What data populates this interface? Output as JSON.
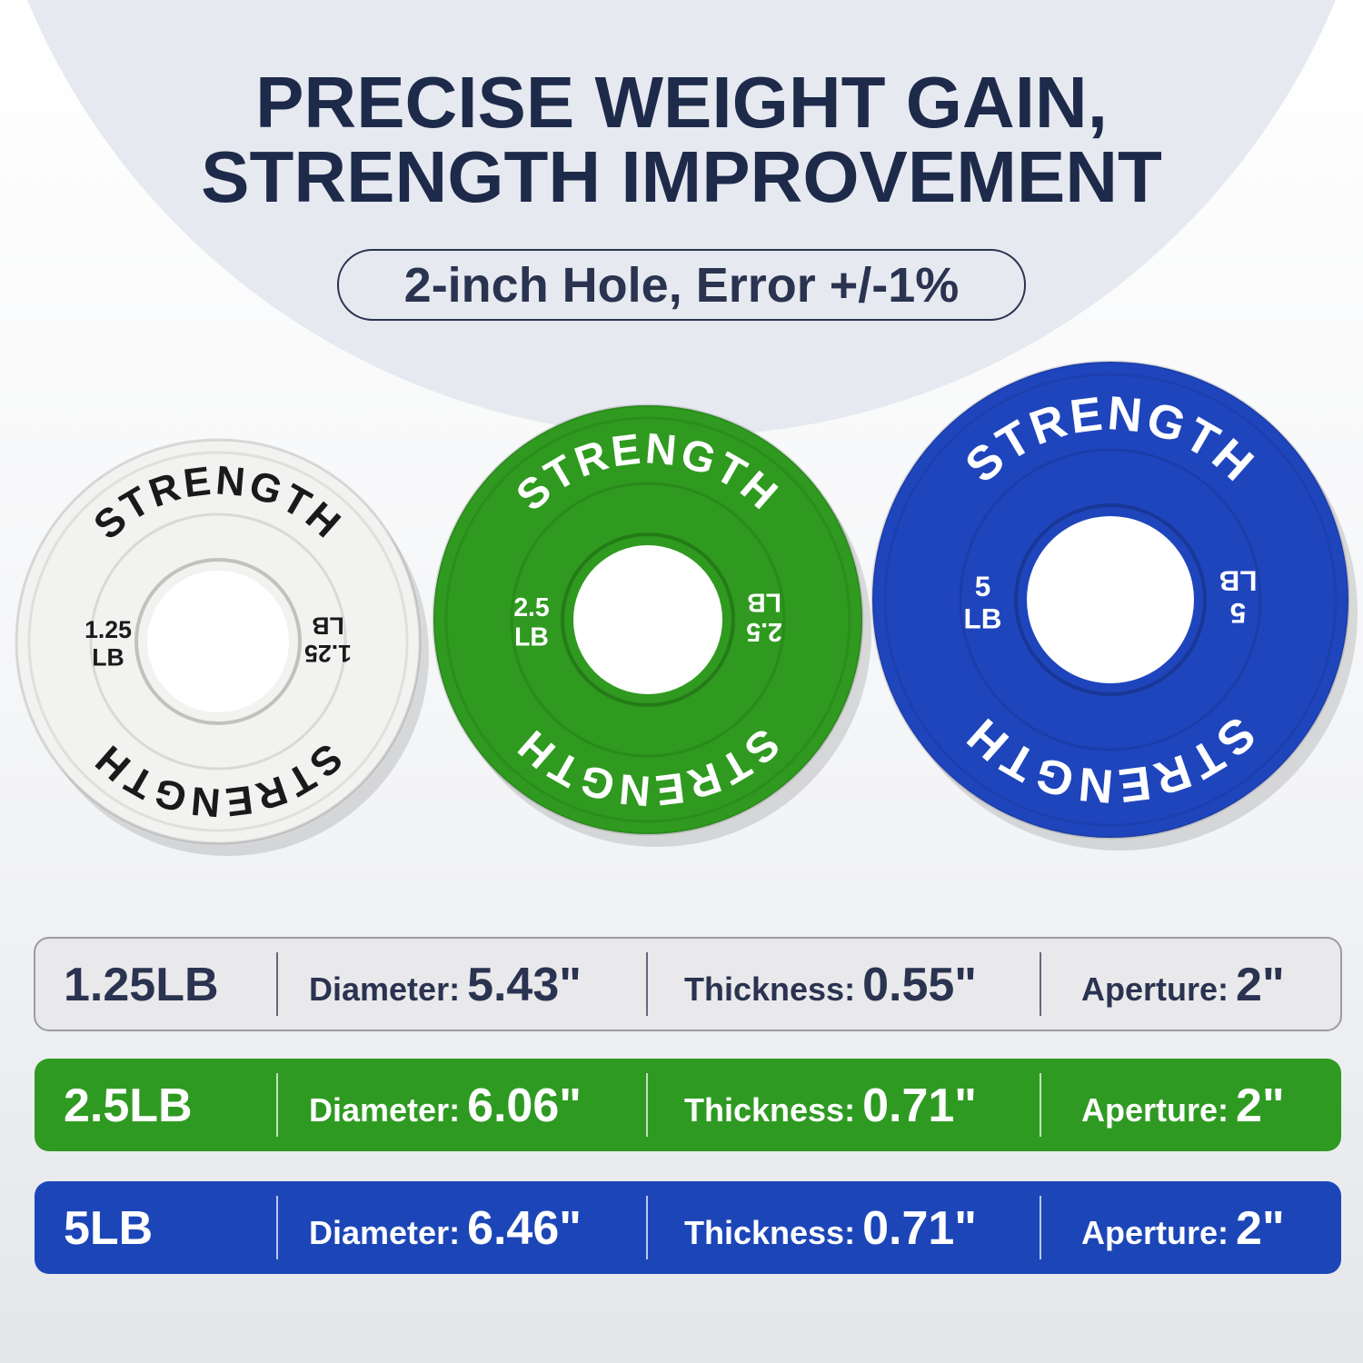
{
  "header": {
    "title_lines": [
      "PRECISE WEIGHT GAIN,",
      "STRENGTH IMPROVEMENT"
    ],
    "subtitle": "2-inch Hole, Error +/-1%"
  },
  "plates": [
    {
      "brand": "STRENGTH",
      "weight": "1.25",
      "unit": "LB",
      "color": "#f2f2f0",
      "text_color": "#1a1a1a"
    },
    {
      "brand": "STRENGTH",
      "weight": "2.5",
      "unit": "LB",
      "color": "#2f9a1f",
      "text_color": "#ffffff"
    },
    {
      "brand": "STRENGTH",
      "weight": "5",
      "unit": "LB",
      "color": "#1f45bd",
      "text_color": "#ffffff"
    }
  ],
  "table": {
    "rows": [
      {
        "name": "1.25LB",
        "color": "#e9e9eb",
        "text_color": "#2a3350",
        "specs": [
          {
            "label": "Diameter:",
            "value": "5.43\""
          },
          {
            "label": "Thickness:",
            "value": "0.55\""
          },
          {
            "label": "Aperture:",
            "value": "2\""
          }
        ]
      },
      {
        "name": "2.5LB",
        "color": "#2f9a22",
        "text_color": "#ffffff",
        "specs": [
          {
            "label": "Diameter:",
            "value": "6.06\""
          },
          {
            "label": "Thickness:",
            "value": "0.71\""
          },
          {
            "label": "Aperture:",
            "value": "2\""
          }
        ]
      },
      {
        "name": "5LB",
        "color": "#1c46b8",
        "text_color": "#ffffff",
        "specs": [
          {
            "label": "Diameter:",
            "value": "6.46\""
          },
          {
            "label": "Thickness:",
            "value": "0.71\""
          },
          {
            "label": "Aperture:",
            "value": "2\""
          }
        ]
      }
    ]
  }
}
